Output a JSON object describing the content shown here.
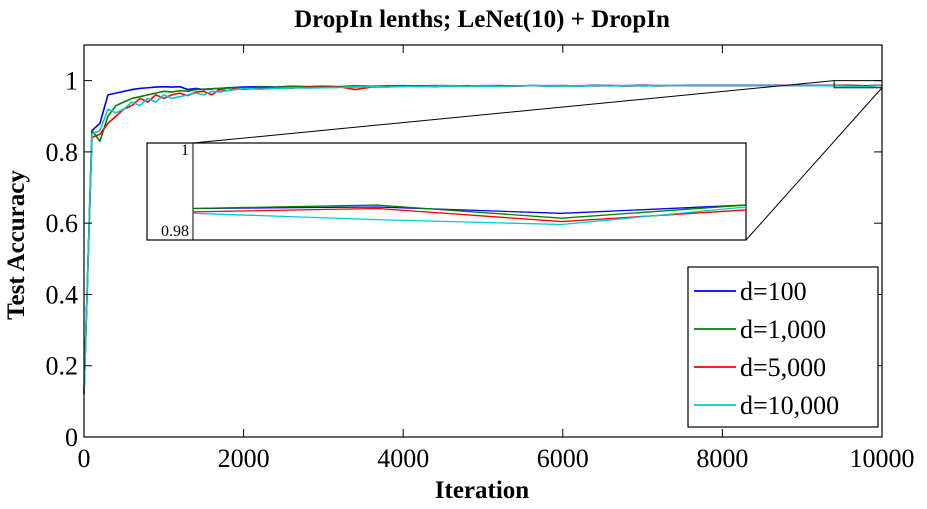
{
  "chart_data": {
    "type": "line",
    "title": "DropIn lenths; LeNet(10) + DropIn",
    "xlabel": "Iteration",
    "ylabel": "Test Accuracy",
    "xlim": [
      0,
      10000
    ],
    "ylim": [
      0,
      1.1
    ],
    "x_ticks": [
      0,
      2000,
      4000,
      6000,
      8000,
      10000
    ],
    "x_tick_labels": [
      "0",
      "2000",
      "4000",
      "6000",
      "8000",
      "10000"
    ],
    "y_ticks": [
      0,
      0.2,
      0.4,
      0.6,
      0.8,
      1
    ],
    "y_tick_labels": [
      "0",
      "0.2",
      "0.4",
      "0.6",
      "0.8",
      "1"
    ],
    "grid": false,
    "legend_position": "bottom-right",
    "series": [
      {
        "name": "d=100",
        "color": "#0000ff",
        "x": [
          0,
          100,
          200,
          300,
          400,
          500,
          600,
          700,
          800,
          900,
          1000,
          1100,
          1200,
          1300,
          1400,
          1500,
          1600,
          1700,
          1800,
          1900,
          2000,
          2200,
          2400,
          2600,
          2800,
          3000,
          3200,
          3400,
          3600,
          3800,
          4000,
          4200,
          4400,
          4600,
          4800,
          5000,
          5200,
          5400,
          5600,
          5800,
          6000,
          6200,
          6400,
          6600,
          6800,
          7000,
          7200,
          7400,
          7600,
          7800,
          8000,
          8200,
          8400,
          8600,
          8800,
          9000,
          9200,
          9400,
          9600,
          9800,
          10000
        ],
        "y": [
          0.12,
          0.86,
          0.88,
          0.96,
          0.965,
          0.97,
          0.975,
          0.978,
          0.98,
          0.982,
          0.983,
          0.982,
          0.983,
          0.975,
          0.978,
          0.975,
          0.977,
          0.978,
          0.98,
          0.981,
          0.982,
          0.983,
          0.982,
          0.984,
          0.983,
          0.984,
          0.983,
          0.985,
          0.984,
          0.985,
          0.986,
          0.985,
          0.986,
          0.986,
          0.985,
          0.986,
          0.986,
          0.985,
          0.986,
          0.986,
          0.986,
          0.985,
          0.987,
          0.986,
          0.986,
          0.987,
          0.986,
          0.986,
          0.987,
          0.987,
          0.987,
          0.987,
          0.987,
          0.987,
          0.987,
          0.987,
          0.987,
          0.9865,
          0.9868,
          0.9855,
          0.9872
        ]
      },
      {
        "name": "d=1,000",
        "color": "#008000",
        "x": [
          0,
          100,
          200,
          300,
          400,
          500,
          600,
          700,
          800,
          900,
          1000,
          1100,
          1200,
          1300,
          1400,
          1500,
          1600,
          1700,
          1800,
          1900,
          2000,
          2200,
          2400,
          2600,
          2800,
          3000,
          3200,
          3400,
          3600,
          3800,
          4000,
          4200,
          4400,
          4600,
          4800,
          5000,
          5200,
          5400,
          5600,
          5800,
          6000,
          6200,
          6400,
          6600,
          6800,
          7000,
          7200,
          7400,
          7600,
          7800,
          8000,
          8200,
          8400,
          8600,
          8800,
          9000,
          9200,
          9400,
          9600,
          9800,
          10000
        ],
        "y": [
          0.12,
          0.86,
          0.83,
          0.9,
          0.93,
          0.94,
          0.95,
          0.955,
          0.96,
          0.965,
          0.97,
          0.968,
          0.972,
          0.97,
          0.975,
          0.976,
          0.977,
          0.978,
          0.979,
          0.98,
          0.978,
          0.982,
          0.981,
          0.983,
          0.982,
          0.983,
          0.982,
          0.984,
          0.983,
          0.985,
          0.984,
          0.985,
          0.986,
          0.985,
          0.986,
          0.985,
          0.986,
          0.985,
          0.986,
          0.985,
          0.986,
          0.985,
          0.986,
          0.986,
          0.985,
          0.986,
          0.986,
          0.986,
          0.986,
          0.986,
          0.986,
          0.986,
          0.986,
          0.986,
          0.986,
          0.986,
          0.986,
          0.9865,
          0.9872,
          0.9845,
          0.9872
        ]
      },
      {
        "name": "d=5,000",
        "color": "#ff0000",
        "x": [
          0,
          100,
          200,
          300,
          400,
          500,
          600,
          700,
          800,
          900,
          1000,
          1100,
          1200,
          1300,
          1400,
          1500,
          1600,
          1700,
          1800,
          1900,
          2000,
          2200,
          2400,
          2600,
          2800,
          3000,
          3200,
          3400,
          3600,
          3800,
          4000,
          4200,
          4400,
          4600,
          4800,
          5000,
          5200,
          5400,
          5600,
          5800,
          6000,
          6200,
          6400,
          6600,
          6800,
          7000,
          7200,
          7400,
          7600,
          7800,
          8000,
          8200,
          8400,
          8600,
          8800,
          9000,
          9200,
          9400,
          9600,
          9800,
          10000
        ],
        "y": [
          0.12,
          0.84,
          0.85,
          0.88,
          0.9,
          0.92,
          0.93,
          0.95,
          0.94,
          0.96,
          0.95,
          0.96,
          0.965,
          0.958,
          0.968,
          0.97,
          0.96,
          0.975,
          0.972,
          0.978,
          0.976,
          0.978,
          0.98,
          0.979,
          0.982,
          0.981,
          0.983,
          0.975,
          0.982,
          0.983,
          0.984,
          0.985,
          0.983,
          0.985,
          0.984,
          0.985,
          0.985,
          0.984,
          0.986,
          0.985,
          0.985,
          0.986,
          0.985,
          0.986,
          0.985,
          0.986,
          0.985,
          0.986,
          0.986,
          0.986,
          0.986,
          0.986,
          0.986,
          0.986,
          0.986,
          0.986,
          0.9862,
          0.9858,
          0.9865,
          0.9838,
          0.9862
        ]
      },
      {
        "name": "d=10,000",
        "color": "#00cccc",
        "x": [
          0,
          100,
          200,
          300,
          400,
          500,
          600,
          700,
          800,
          900,
          1000,
          1100,
          1200,
          1300,
          1400,
          1500,
          1600,
          1700,
          1800,
          1900,
          2000,
          2200,
          2400,
          2600,
          2800,
          3000,
          3200,
          3400,
          3600,
          3800,
          4000,
          4200,
          4400,
          4600,
          4800,
          5000,
          5200,
          5400,
          5600,
          5800,
          6000,
          6200,
          6400,
          6600,
          6800,
          7000,
          7200,
          7400,
          7600,
          7800,
          8000,
          8200,
          8400,
          8600,
          8800,
          9000,
          9200,
          9400,
          9600,
          9800,
          10000
        ],
        "y": [
          0.12,
          0.85,
          0.86,
          0.92,
          0.91,
          0.92,
          0.94,
          0.93,
          0.95,
          0.94,
          0.96,
          0.95,
          0.955,
          0.96,
          0.965,
          0.96,
          0.97,
          0.968,
          0.972,
          0.975,
          0.978,
          0.976,
          0.978,
          0.98,
          0.979,
          0.98,
          0.981,
          0.982,
          0.983,
          0.982,
          0.984,
          0.983,
          0.984,
          0.985,
          0.984,
          0.985,
          0.984,
          0.985,
          0.986,
          0.985,
          0.985,
          0.985,
          0.986,
          0.985,
          0.986,
          0.985,
          0.986,
          0.986,
          0.986,
          0.986,
          0.986,
          0.986,
          0.986,
          0.986,
          0.986,
          0.986,
          0.9858,
          0.9855,
          0.9842,
          0.9832,
          0.9868
        ]
      }
    ],
    "inset": {
      "xlim": [
        9400,
        10000
      ],
      "ylim": [
        0.98,
        1.0
      ],
      "y_ticks": [
        0.98,
        1
      ],
      "y_tick_labels": [
        "0.98",
        "1"
      ]
    }
  }
}
